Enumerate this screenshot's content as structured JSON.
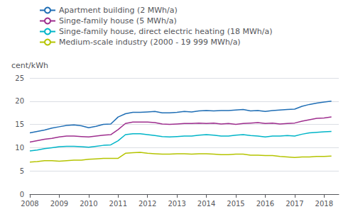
{
  "chart_data": {
    "type": "line",
    "ylabel": "cent/kWh",
    "x": [
      2008.0,
      2008.25,
      2008.5,
      2008.75,
      2009.0,
      2009.25,
      2009.5,
      2009.75,
      2010.0,
      2010.25,
      2010.5,
      2010.75,
      2011.0,
      2011.25,
      2011.5,
      2011.75,
      2012.0,
      2012.25,
      2012.5,
      2012.75,
      2013.0,
      2013.25,
      2013.5,
      2013.75,
      2014.0,
      2014.25,
      2014.5,
      2014.75,
      2015.0,
      2015.25,
      2015.5,
      2015.75,
      2016.0,
      2016.25,
      2016.5,
      2016.75,
      2017.0,
      2017.25,
      2017.5,
      2017.75,
      2018.0,
      2018.25
    ],
    "series": [
      {
        "name": "Apartment building (2 MWh/a)",
        "color": "#1f6eb5",
        "values": [
          13.2,
          13.5,
          13.8,
          14.2,
          14.5,
          14.8,
          14.9,
          14.7,
          14.3,
          14.6,
          15.0,
          15.1,
          16.6,
          17.3,
          17.6,
          17.6,
          17.7,
          17.8,
          17.5,
          17.5,
          17.6,
          17.8,
          17.7,
          17.9,
          18.0,
          17.9,
          18.0,
          18.0,
          18.1,
          18.2,
          17.9,
          18.0,
          17.8,
          18.0,
          18.1,
          18.2,
          18.3,
          18.9,
          19.3,
          19.6,
          19.8,
          20.0
        ]
      },
      {
        "name": "Singe-family house (5 MWh/a)",
        "color": "#9e2e8e",
        "values": [
          11.2,
          11.5,
          11.8,
          12.0,
          12.3,
          12.5,
          12.5,
          12.4,
          12.3,
          12.5,
          12.7,
          12.8,
          13.9,
          15.2,
          15.5,
          15.5,
          15.5,
          15.4,
          15.1,
          15.0,
          15.1,
          15.2,
          15.2,
          15.3,
          15.2,
          15.3,
          15.1,
          15.2,
          15.0,
          15.2,
          15.3,
          15.4,
          15.2,
          15.3,
          15.1,
          15.2,
          15.3,
          15.7,
          16.0,
          16.3,
          16.4,
          16.6
        ]
      },
      {
        "name": "Singe-family house, direct electric heating (18 MWh/a)",
        "color": "#00b5c8",
        "values": [
          9.3,
          9.5,
          9.8,
          10.0,
          10.2,
          10.3,
          10.3,
          10.2,
          10.1,
          10.3,
          10.5,
          10.6,
          11.5,
          12.8,
          13.0,
          13.0,
          12.8,
          12.6,
          12.4,
          12.3,
          12.4,
          12.5,
          12.5,
          12.7,
          12.8,
          12.7,
          12.5,
          12.5,
          12.7,
          12.8,
          12.6,
          12.5,
          12.3,
          12.5,
          12.5,
          12.6,
          12.5,
          12.9,
          13.2,
          13.3,
          13.4,
          13.5
        ]
      },
      {
        "name": "Medium-scale industry (2000 - 19 999 MWh/a)",
        "color": "#b5c400",
        "values": [
          6.9,
          7.0,
          7.2,
          7.2,
          7.1,
          7.2,
          7.3,
          7.3,
          7.5,
          7.6,
          7.7,
          7.7,
          7.7,
          8.8,
          8.9,
          9.0,
          8.8,
          8.7,
          8.6,
          8.6,
          8.7,
          8.7,
          8.6,
          8.7,
          8.7,
          8.6,
          8.5,
          8.5,
          8.6,
          8.6,
          8.4,
          8.4,
          8.3,
          8.3,
          8.1,
          8.0,
          7.9,
          8.0,
          8.0,
          8.1,
          8.1,
          8.2
        ]
      }
    ],
    "xlim": [
      2008.0,
      2018.5
    ],
    "xticks": [
      2008,
      2009,
      2010,
      2011,
      2012,
      2013,
      2014,
      2015,
      2016,
      2017,
      2018
    ],
    "ylim": [
      0,
      25
    ],
    "yticks": [
      0,
      5,
      10,
      15,
      20,
      25
    ],
    "grid": true,
    "legend": "upper left"
  }
}
